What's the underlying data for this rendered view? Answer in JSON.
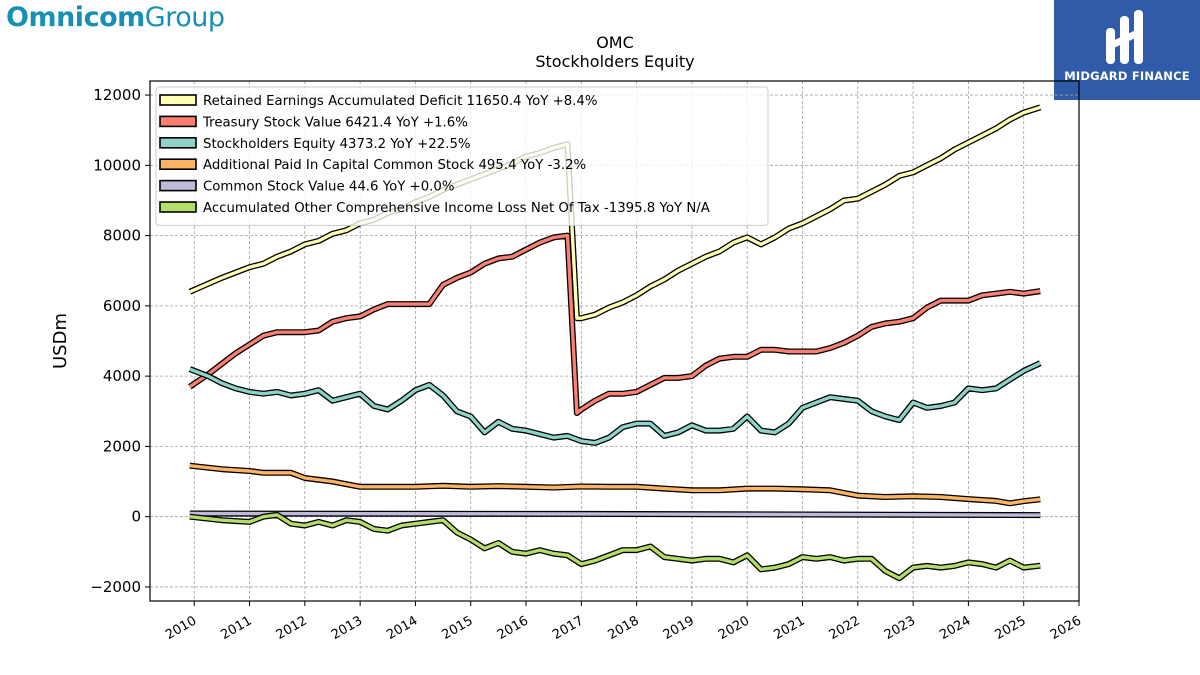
{
  "brand": {
    "part1": "Omnicom",
    "part2": "Group"
  },
  "badge": {
    "text": "MIDGARD FINANCE"
  },
  "chart_data": {
    "type": "line",
    "title": "OMC",
    "subtitle": "Stockholders  Equity",
    "ylabel": "USDm",
    "xlabel": "",
    "xlim": [
      2009.2,
      2026.0
    ],
    "ylim": [
      -2400,
      12400
    ],
    "grid": true,
    "legend_position": "top-left",
    "yticks": [
      -2000,
      0,
      2000,
      4000,
      6000,
      8000,
      10000,
      12000
    ],
    "ytick_labels": [
      "−2000",
      "0",
      "2000",
      "4000",
      "6000",
      "8000",
      "10000",
      "12000"
    ],
    "xticks": [
      2010,
      2011,
      2012,
      2013,
      2014,
      2015,
      2016,
      2017,
      2018,
      2019,
      2020,
      2021,
      2022,
      2023,
      2024,
      2025,
      2026
    ],
    "xtick_labels": [
      "2010",
      "2011",
      "2012",
      "2013",
      "2014",
      "2015",
      "2016",
      "2017",
      "2018",
      "2019",
      "2020",
      "2021",
      "2022",
      "2023",
      "2024",
      "2025",
      "2026"
    ],
    "series": [
      {
        "name": "Retained Earnings Accumulated Deficit  11650.4 YoY +8.4%",
        "color": "#ffffb3",
        "points": [
          [
            2009.92,
            6400
          ],
          [
            2010.5,
            6800
          ],
          [
            2011.0,
            7100
          ],
          [
            2011.25,
            7200
          ],
          [
            2011.5,
            7400
          ],
          [
            2011.75,
            7550
          ],
          [
            2012.0,
            7750
          ],
          [
            2012.25,
            7850
          ],
          [
            2012.5,
            8050
          ],
          [
            2012.75,
            8150
          ],
          [
            2013.0,
            8350
          ],
          [
            2013.25,
            8450
          ],
          [
            2013.5,
            8650
          ],
          [
            2013.75,
            8750
          ],
          [
            2014.0,
            8950
          ],
          [
            2014.25,
            9100
          ],
          [
            2014.5,
            9300
          ],
          [
            2014.75,
            9450
          ],
          [
            2015.0,
            9600
          ],
          [
            2015.25,
            9750
          ],
          [
            2015.5,
            9900
          ],
          [
            2015.75,
            10050
          ],
          [
            2016.0,
            10250
          ],
          [
            2016.25,
            10350
          ],
          [
            2016.5,
            10500
          ],
          [
            2016.75,
            10600
          ],
          [
            2016.92,
            5650
          ],
          [
            2017.0,
            5650
          ],
          [
            2017.25,
            5750
          ],
          [
            2017.5,
            5950
          ],
          [
            2017.75,
            6100
          ],
          [
            2018.0,
            6300
          ],
          [
            2018.25,
            6550
          ],
          [
            2018.5,
            6750
          ],
          [
            2018.75,
            7000
          ],
          [
            2019.0,
            7200
          ],
          [
            2019.25,
            7400
          ],
          [
            2019.5,
            7550
          ],
          [
            2019.75,
            7800
          ],
          [
            2020.0,
            7950
          ],
          [
            2020.25,
            7750
          ],
          [
            2020.5,
            7950
          ],
          [
            2020.75,
            8200
          ],
          [
            2021.0,
            8350
          ],
          [
            2021.25,
            8550
          ],
          [
            2021.5,
            8750
          ],
          [
            2021.75,
            9000
          ],
          [
            2022.0,
            9050
          ],
          [
            2022.25,
            9250
          ],
          [
            2022.5,
            9450
          ],
          [
            2022.75,
            9700
          ],
          [
            2023.0,
            9800
          ],
          [
            2023.25,
            10000
          ],
          [
            2023.5,
            10200
          ],
          [
            2023.75,
            10450
          ],
          [
            2024.0,
            10650
          ],
          [
            2024.25,
            10850
          ],
          [
            2024.5,
            11050
          ],
          [
            2024.75,
            11300
          ],
          [
            2025.0,
            11500
          ],
          [
            2025.3,
            11650
          ]
        ]
      },
      {
        "name": "Treasury Stock Value  6421.4 YoY +1.6%",
        "color": "#fb8072",
        "points": [
          [
            2009.92,
            3700
          ],
          [
            2010.25,
            4050
          ],
          [
            2010.5,
            4350
          ],
          [
            2010.75,
            4650
          ],
          [
            2011.0,
            4900
          ],
          [
            2011.25,
            5150
          ],
          [
            2011.5,
            5250
          ],
          [
            2011.75,
            5250
          ],
          [
            2012.0,
            5250
          ],
          [
            2012.25,
            5300
          ],
          [
            2012.5,
            5550
          ],
          [
            2012.75,
            5650
          ],
          [
            2013.0,
            5700
          ],
          [
            2013.25,
            5900
          ],
          [
            2013.5,
            6050
          ],
          [
            2013.75,
            6050
          ],
          [
            2014.0,
            6050
          ],
          [
            2014.25,
            6050
          ],
          [
            2014.5,
            6600
          ],
          [
            2014.75,
            6800
          ],
          [
            2015.0,
            6950
          ],
          [
            2015.25,
            7200
          ],
          [
            2015.5,
            7350
          ],
          [
            2015.75,
            7400
          ],
          [
            2016.0,
            7600
          ],
          [
            2016.25,
            7800
          ],
          [
            2016.5,
            7950
          ],
          [
            2016.75,
            8000
          ],
          [
            2016.92,
            2950
          ],
          [
            2017.0,
            3050
          ],
          [
            2017.25,
            3300
          ],
          [
            2017.5,
            3500
          ],
          [
            2017.75,
            3500
          ],
          [
            2018.0,
            3550
          ],
          [
            2018.25,
            3750
          ],
          [
            2018.5,
            3950
          ],
          [
            2018.75,
            3950
          ],
          [
            2019.0,
            4000
          ],
          [
            2019.25,
            4300
          ],
          [
            2019.5,
            4500
          ],
          [
            2019.75,
            4550
          ],
          [
            2020.0,
            4550
          ],
          [
            2020.25,
            4750
          ],
          [
            2020.5,
            4750
          ],
          [
            2020.75,
            4700
          ],
          [
            2021.0,
            4700
          ],
          [
            2021.25,
            4700
          ],
          [
            2021.5,
            4800
          ],
          [
            2021.75,
            4950
          ],
          [
            2022.0,
            5150
          ],
          [
            2022.25,
            5400
          ],
          [
            2022.5,
            5500
          ],
          [
            2022.75,
            5550
          ],
          [
            2023.0,
            5650
          ],
          [
            2023.25,
            5950
          ],
          [
            2023.5,
            6150
          ],
          [
            2023.75,
            6150
          ],
          [
            2024.0,
            6150
          ],
          [
            2024.25,
            6300
          ],
          [
            2024.5,
            6350
          ],
          [
            2024.75,
            6400
          ],
          [
            2025.0,
            6350
          ],
          [
            2025.3,
            6420
          ]
        ]
      },
      {
        "name": "Stockholders Equity  4373.2 YoY +22.5%",
        "color": "#8dd3c7",
        "points": [
          [
            2009.92,
            4200
          ],
          [
            2010.25,
            4000
          ],
          [
            2010.5,
            3800
          ],
          [
            2010.75,
            3650
          ],
          [
            2011.0,
            3550
          ],
          [
            2011.25,
            3500
          ],
          [
            2011.5,
            3550
          ],
          [
            2011.75,
            3450
          ],
          [
            2012.0,
            3500
          ],
          [
            2012.25,
            3600
          ],
          [
            2012.5,
            3300
          ],
          [
            2012.75,
            3400
          ],
          [
            2013.0,
            3500
          ],
          [
            2013.25,
            3150
          ],
          [
            2013.5,
            3050
          ],
          [
            2013.75,
            3300
          ],
          [
            2014.0,
            3600
          ],
          [
            2014.25,
            3750
          ],
          [
            2014.5,
            3450
          ],
          [
            2014.75,
            3000
          ],
          [
            2015.0,
            2850
          ],
          [
            2015.25,
            2400
          ],
          [
            2015.5,
            2700
          ],
          [
            2015.75,
            2500
          ],
          [
            2016.0,
            2450
          ],
          [
            2016.25,
            2350
          ],
          [
            2016.5,
            2250
          ],
          [
            2016.75,
            2300
          ],
          [
            2017.0,
            2150
          ],
          [
            2017.25,
            2100
          ],
          [
            2017.5,
            2250
          ],
          [
            2017.75,
            2550
          ],
          [
            2018.0,
            2650
          ],
          [
            2018.25,
            2650
          ],
          [
            2018.5,
            2300
          ],
          [
            2018.75,
            2400
          ],
          [
            2019.0,
            2600
          ],
          [
            2019.25,
            2450
          ],
          [
            2019.5,
            2450
          ],
          [
            2019.75,
            2500
          ],
          [
            2020.0,
            2850
          ],
          [
            2020.25,
            2450
          ],
          [
            2020.5,
            2400
          ],
          [
            2020.75,
            2650
          ],
          [
            2021.0,
            3100
          ],
          [
            2021.25,
            3250
          ],
          [
            2021.5,
            3400
          ],
          [
            2021.75,
            3350
          ],
          [
            2022.0,
            3300
          ],
          [
            2022.25,
            3000
          ],
          [
            2022.5,
            2850
          ],
          [
            2022.75,
            2750
          ],
          [
            2023.0,
            3250
          ],
          [
            2023.25,
            3100
          ],
          [
            2023.5,
            3150
          ],
          [
            2023.75,
            3250
          ],
          [
            2024.0,
            3650
          ],
          [
            2024.25,
            3600
          ],
          [
            2024.5,
            3650
          ],
          [
            2024.75,
            3900
          ],
          [
            2025.0,
            4150
          ],
          [
            2025.3,
            4370
          ]
        ]
      },
      {
        "name": "Additional Paid In Capital Common Stock  495.4 YoY -3.2%",
        "color": "#fdb462",
        "points": [
          [
            2009.92,
            1450
          ],
          [
            2010.5,
            1350
          ],
          [
            2011.0,
            1300
          ],
          [
            2011.25,
            1250
          ],
          [
            2011.75,
            1250
          ],
          [
            2012.0,
            1100
          ],
          [
            2012.5,
            1000
          ],
          [
            2013.0,
            850
          ],
          [
            2013.5,
            850
          ],
          [
            2014.0,
            850
          ],
          [
            2014.5,
            880
          ],
          [
            2015.0,
            850
          ],
          [
            2015.5,
            870
          ],
          [
            2016.0,
            850
          ],
          [
            2016.5,
            830
          ],
          [
            2017.0,
            860
          ],
          [
            2017.5,
            850
          ],
          [
            2018.0,
            850
          ],
          [
            2018.5,
            800
          ],
          [
            2019.0,
            750
          ],
          [
            2019.5,
            750
          ],
          [
            2020.0,
            800
          ],
          [
            2020.5,
            800
          ],
          [
            2021.0,
            780
          ],
          [
            2021.5,
            750
          ],
          [
            2022.0,
            600
          ],
          [
            2022.5,
            560
          ],
          [
            2023.0,
            580
          ],
          [
            2023.5,
            560
          ],
          [
            2024.0,
            500
          ],
          [
            2024.5,
            450
          ],
          [
            2024.75,
            380
          ],
          [
            2025.0,
            440
          ],
          [
            2025.3,
            495
          ]
        ]
      },
      {
        "name": "Common Stock Value  44.6 YoY +0.0%",
        "color": "#bebada",
        "points": [
          [
            2009.92,
            90
          ],
          [
            2017.0,
            80
          ],
          [
            2025.3,
            45
          ]
        ]
      },
      {
        "name": "Accumulated Other Comprehensive Income Loss Net Of Tax  -1395.8 YoY N/A",
        "color": "#b3de69",
        "points": [
          [
            2009.92,
            0
          ],
          [
            2010.5,
            -100
          ],
          [
            2011.0,
            -150
          ],
          [
            2011.25,
            0
          ],
          [
            2011.5,
            50
          ],
          [
            2011.75,
            -200
          ],
          [
            2012.0,
            -250
          ],
          [
            2012.25,
            -150
          ],
          [
            2012.5,
            -250
          ],
          [
            2012.75,
            -100
          ],
          [
            2013.0,
            -150
          ],
          [
            2013.25,
            -350
          ],
          [
            2013.5,
            -400
          ],
          [
            2013.75,
            -250
          ],
          [
            2014.0,
            -200
          ],
          [
            2014.25,
            -150
          ],
          [
            2014.5,
            -100
          ],
          [
            2014.75,
            -450
          ],
          [
            2015.0,
            -650
          ],
          [
            2015.25,
            -900
          ],
          [
            2015.5,
            -750
          ],
          [
            2015.75,
            -1000
          ],
          [
            2016.0,
            -1050
          ],
          [
            2016.25,
            -950
          ],
          [
            2016.5,
            -1050
          ],
          [
            2016.75,
            -1100
          ],
          [
            2017.0,
            -1350
          ],
          [
            2017.25,
            -1250
          ],
          [
            2017.5,
            -1100
          ],
          [
            2017.75,
            -950
          ],
          [
            2018.0,
            -950
          ],
          [
            2018.25,
            -850
          ],
          [
            2018.5,
            -1150
          ],
          [
            2018.75,
            -1200
          ],
          [
            2019.0,
            -1250
          ],
          [
            2019.25,
            -1200
          ],
          [
            2019.5,
            -1200
          ],
          [
            2019.75,
            -1300
          ],
          [
            2020.0,
            -1100
          ],
          [
            2020.25,
            -1500
          ],
          [
            2020.5,
            -1450
          ],
          [
            2020.75,
            -1350
          ],
          [
            2021.0,
            -1150
          ],
          [
            2021.25,
            -1200
          ],
          [
            2021.5,
            -1150
          ],
          [
            2021.75,
            -1250
          ],
          [
            2022.0,
            -1200
          ],
          [
            2022.25,
            -1200
          ],
          [
            2022.5,
            -1550
          ],
          [
            2022.75,
            -1750
          ],
          [
            2023.0,
            -1450
          ],
          [
            2023.25,
            -1400
          ],
          [
            2023.5,
            -1450
          ],
          [
            2023.75,
            -1400
          ],
          [
            2024.0,
            -1300
          ],
          [
            2024.25,
            -1350
          ],
          [
            2024.5,
            -1450
          ],
          [
            2024.75,
            -1250
          ],
          [
            2025.0,
            -1450
          ],
          [
            2025.3,
            -1395
          ]
        ]
      }
    ]
  }
}
